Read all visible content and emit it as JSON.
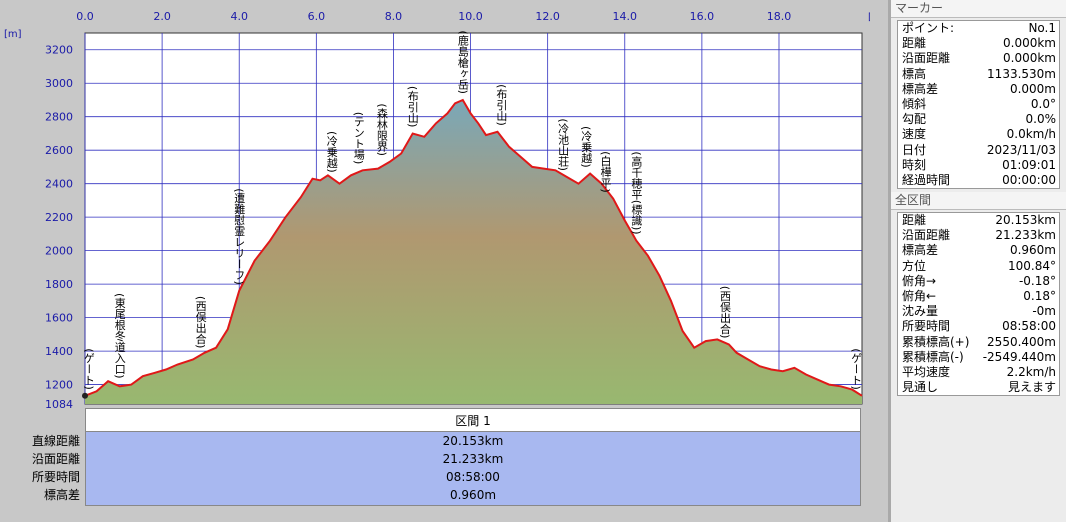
{
  "chart_data": {
    "type": "area",
    "x_unit": "[km]",
    "y_unit": "[m]",
    "x_ticks": [
      "0.0",
      "2.0",
      "4.0",
      "6.0",
      "8.0",
      "10.0",
      "12.0",
      "14.0",
      "16.0",
      "18.0"
    ],
    "y_ticks": [
      "1200",
      "1400",
      "1600",
      "1800",
      "2000",
      "2200",
      "2400",
      "2600",
      "2800",
      "3000",
      "3200"
    ],
    "y_min_label": "1084",
    "xlim": [
      0,
      20.153
    ],
    "ylim": [
      1084,
      3300
    ],
    "profile": {
      "x": [
        0,
        0.3,
        0.6,
        0.9,
        1.2,
        1.5,
        1.8,
        2.1,
        2.4,
        2.8,
        3.1,
        3.4,
        3.7,
        4.0,
        4.4,
        4.8,
        5.2,
        5.6,
        5.9,
        6.1,
        6.3,
        6.6,
        6.9,
        7.2,
        7.6,
        7.9,
        8.2,
        8.5,
        8.8,
        9.1,
        9.4,
        9.6,
        9.8,
        10.0,
        10.2,
        10.4,
        10.7,
        11.0,
        11.3,
        11.6,
        11.9,
        12.2,
        12.5,
        12.8,
        13.1,
        13.4,
        13.7,
        14.0,
        14.3,
        14.6,
        14.9,
        15.2,
        15.5,
        15.8,
        16.1,
        16.4,
        16.7,
        16.9,
        17.2,
        17.5,
        17.8,
        18.1,
        18.4,
        18.7,
        19.0,
        19.3,
        19.6,
        19.9,
        20.153
      ],
      "y": [
        1133,
        1160,
        1220,
        1190,
        1200,
        1250,
        1270,
        1290,
        1320,
        1350,
        1390,
        1420,
        1530,
        1760,
        1940,
        2060,
        2200,
        2320,
        2430,
        2420,
        2450,
        2400,
        2450,
        2480,
        2490,
        2530,
        2580,
        2700,
        2680,
        2760,
        2820,
        2880,
        2900,
        2820,
        2760,
        2690,
        2710,
        2620,
        2560,
        2500,
        2490,
        2480,
        2440,
        2400,
        2460,
        2400,
        2310,
        2180,
        2060,
        1970,
        1850,
        1700,
        1520,
        1420,
        1460,
        1470,
        1440,
        1390,
        1350,
        1310,
        1290,
        1280,
        1300,
        1260,
        1230,
        1200,
        1190,
        1170,
        1133
      ]
    },
    "annotations": [
      {
        "text": "(ゲート)",
        "x": 0.1,
        "y": 1133
      },
      {
        "text": "(東尾根冬道入口)",
        "x": 0.9,
        "y": 1200
      },
      {
        "text": "(西俣出合)",
        "x": 3.0,
        "y": 1380
      },
      {
        "text": "(遭難慰霊レリーフ)",
        "x": 4.0,
        "y": 1760
      },
      {
        "text": "(冷乗越)",
        "x": 6.4,
        "y": 2430
      },
      {
        "text": "(テント場)",
        "x": 7.1,
        "y": 2480
      },
      {
        "text": "(森林限界)",
        "x": 7.7,
        "y": 2530
      },
      {
        "text": "(布引山)",
        "x": 8.5,
        "y": 2700
      },
      {
        "text": "(鹿島槍ヶ岳)",
        "x": 9.8,
        "y": 2900
      },
      {
        "text": "(布引山)",
        "x": 10.8,
        "y": 2710
      },
      {
        "text": "(冷池山荘)",
        "x": 12.4,
        "y": 2440
      },
      {
        "text": "(冷乗越)",
        "x": 13.0,
        "y": 2460
      },
      {
        "text": "(白樺平)",
        "x": 13.5,
        "y": 2310
      },
      {
        "text": "(高千穂平(標識))",
        "x": 14.3,
        "y": 2060
      },
      {
        "text": "(西俣出合)",
        "x": 16.6,
        "y": 1440
      },
      {
        "text": "(ゲート)",
        "x": 20.0,
        "y": 1133
      }
    ]
  },
  "summary": {
    "header": "区間 1",
    "labels": [
      "直線距離",
      "沿面距離",
      "所要時間",
      "標高差"
    ],
    "values": [
      "20.153km",
      "21.233km",
      "08:58:00",
      "0.960m"
    ]
  },
  "panel": {
    "marker_title": "マーカー",
    "marker_rows": [
      [
        "ポイント:",
        "No.1"
      ],
      [
        "距離",
        "0.000km"
      ],
      [
        "沿面距離",
        "0.000km"
      ],
      [
        "標高",
        "1133.530m"
      ],
      [
        "標高差",
        "0.000m"
      ],
      [
        "傾斜",
        "0.0°"
      ],
      [
        "勾配",
        "0.0%"
      ],
      [
        "速度",
        "0.0km/h"
      ],
      [
        "日付",
        "2023/11/03"
      ],
      [
        "時刻",
        "01:09:01"
      ],
      [
        "経過時間",
        "00:00:00"
      ]
    ],
    "section_title": "全区間",
    "section_rows": [
      [
        "距離",
        "20.153km"
      ],
      [
        "沿面距離",
        "21.233km"
      ],
      [
        "標高差",
        "0.960m"
      ],
      [
        "方位",
        "100.84°"
      ],
      [
        "俯角→",
        "-0.18°"
      ],
      [
        "俯角←",
        "0.18°"
      ],
      [
        "沈み量",
        "-0m"
      ],
      [
        "所要時間",
        "08:58:00"
      ],
      [
        "累積標高(+)",
        "2550.400m"
      ],
      [
        "累積標高(-)",
        "-2549.440m"
      ],
      [
        "平均速度",
        "2.2km/h"
      ],
      [
        "見通し",
        "見えます"
      ]
    ]
  }
}
